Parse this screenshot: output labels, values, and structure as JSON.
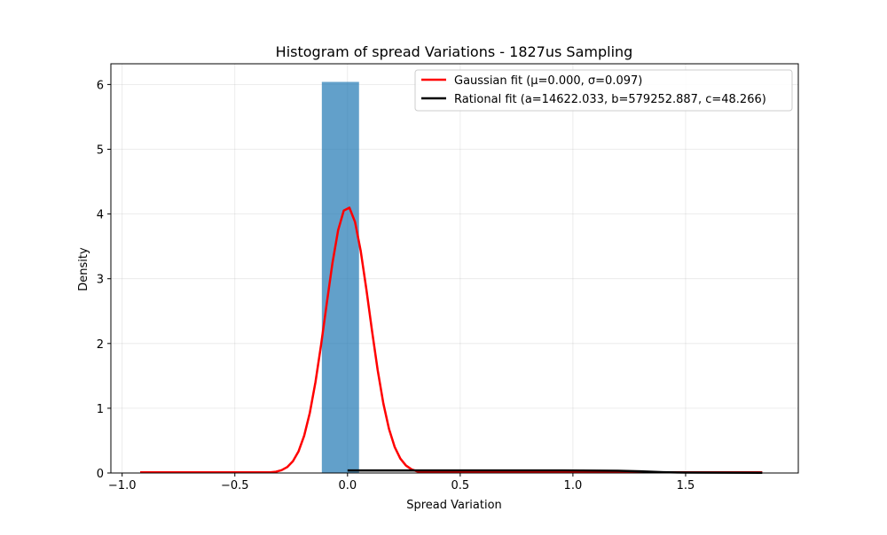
{
  "chart_data": {
    "type": "histogram",
    "title": "Histogram of spread Variations - 1827us Sampling",
    "xlabel": "Spread Variation",
    "ylabel": "Density",
    "xlim": [
      -1.05,
      2.0
    ],
    "ylim": [
      0,
      6.32
    ],
    "grid": true,
    "x_ticks": [
      {
        "value": -1.0,
        "label": "−1.0"
      },
      {
        "value": -0.5,
        "label": "−0.5"
      },
      {
        "value": 0.0,
        "label": "0.0"
      },
      {
        "value": 0.5,
        "label": "0.5"
      },
      {
        "value": 1.0,
        "label": "1.0"
      },
      {
        "value": 1.5,
        "label": "1.5"
      }
    ],
    "y_ticks": [
      {
        "value": 0,
        "label": "0"
      },
      {
        "value": 1,
        "label": "1"
      },
      {
        "value": 2,
        "label": "2"
      },
      {
        "value": 3,
        "label": "3"
      },
      {
        "value": 4,
        "label": "4"
      },
      {
        "value": 5,
        "label": "5"
      },
      {
        "value": 6,
        "label": "6"
      }
    ],
    "histogram": {
      "color": "#1f77b4",
      "alpha": 0.7,
      "bins": [
        {
          "x0": -0.114,
          "x1": 0.051,
          "density": 6.04
        }
      ]
    },
    "series": [
      {
        "name": "gaussian",
        "label": "Gaussian fit (μ=0.000, σ=0.097)",
        "color": "#ff0000",
        "mu": 0.0,
        "sigma": 0.097,
        "x_range": [
          -0.92,
          1.84
        ]
      },
      {
        "name": "rational",
        "label": "Rational fit (a=14622.033, b=579252.887, c=48.266)",
        "color": "#000000",
        "points": [
          [
            0.0,
            0.04
          ],
          [
            0.3,
            0.04
          ],
          [
            0.6,
            0.04
          ],
          [
            0.9,
            0.04
          ],
          [
            1.2,
            0.035
          ],
          [
            1.3,
            0.025
          ],
          [
            1.4,
            0.012
          ],
          [
            1.5,
            0.006
          ],
          [
            1.84,
            0.003
          ]
        ]
      }
    ],
    "legend_position": "top-right"
  }
}
